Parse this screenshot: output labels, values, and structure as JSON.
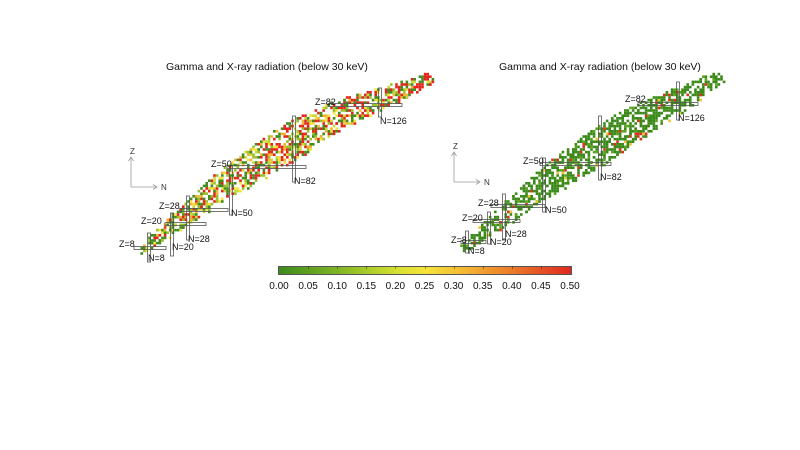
{
  "chart_data": [
    {
      "type": "heatmap",
      "title": "Gamma and X-ray radiation (below 30 keV)",
      "xlabel": "N",
      "ylabel": "Z",
      "description": "Chart of nuclides colored by fraction of decay energy in gamma/X-rays below 30 keV; dominated by red/yellow in heavy region",
      "magic_numbers": {
        "Z": [
          8,
          20,
          28,
          50,
          82
        ],
        "N": [
          8,
          20,
          28,
          50,
          82,
          126
        ]
      },
      "color_range": [
        0.0,
        0.5
      ],
      "dominant_palette": "mixed"
    },
    {
      "type": "heatmap",
      "title": "Gamma and X-ray radiation (below 30 keV)",
      "xlabel": "N",
      "ylabel": "Z",
      "description": "Chart of nuclides colored by fraction; mostly green (low values) with sparse red/yellow",
      "magic_numbers": {
        "Z": [
          8,
          20,
          28,
          50,
          82
        ],
        "N": [
          8,
          20,
          28,
          50,
          82,
          126
        ]
      },
      "color_range": [
        0.0,
        0.5
      ],
      "dominant_palette": "green"
    }
  ],
  "colorbar": {
    "ticks": [
      "0.00",
      "0.05",
      "0.10",
      "0.15",
      "0.20",
      "0.25",
      "0.30",
      "0.35",
      "0.40",
      "0.45",
      "0.50"
    ],
    "colors": {
      "low": "#3d8a1c",
      "mid": "#f5e43a",
      "high": "#e0281e"
    }
  },
  "left": {
    "title": "Gamma and X-ray radiation (below 30 keV)",
    "axis": {
      "z": "Z",
      "n": "N"
    },
    "labels": {
      "z8": "Z=8",
      "z20": "Z=20",
      "z28": "Z=28",
      "z50": "Z=50",
      "z82": "Z=82",
      "n8": "N=8",
      "n20": "N=20",
      "n28": "N=28",
      "n50": "N=50",
      "n82": "N=82",
      "n126": "N=126"
    }
  },
  "right": {
    "title": "Gamma and X-ray radiation (below 30 keV)",
    "axis": {
      "z": "Z",
      "n": "N"
    },
    "labels": {
      "z8": "Z=8",
      "z20": "Z=20",
      "z28": "Z=28",
      "z50": "Z=50",
      "z82": "Z=82",
      "n8": "N=8",
      "n20": "N=20",
      "n28": "N=28",
      "n50": "N=50",
      "n82": "N=82",
      "n126": "N=126"
    }
  }
}
